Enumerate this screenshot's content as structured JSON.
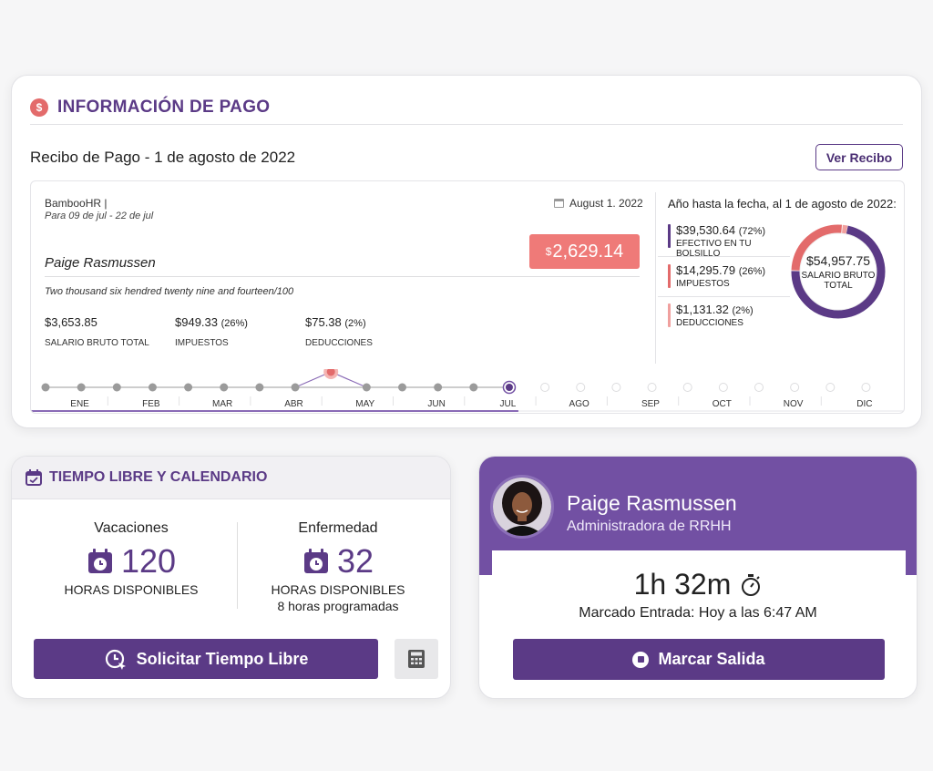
{
  "pay": {
    "title": "INFORMACIÓN DE PAGO",
    "stub_title": "Recibo de Pago - 1 de agosto de 2022",
    "view_button": "Ver Recibo",
    "company": "BambooHR |",
    "period": "Para 09 de jul - 22 de jul",
    "date": "August 1. 2022",
    "employee": "Paige Rasmussen",
    "net_currency": "$",
    "net_amount": "2,629.14",
    "amount_words": "Two thousand six hendred twenty nine and fourteen/100",
    "stats": [
      {
        "value": "$3,653.85",
        "pct": "",
        "label": "SALARIO BRUTO TOTAL"
      },
      {
        "value": "$949.33",
        "pct": "(26%)",
        "label": "IMPUESTOS"
      },
      {
        "value": "$75.38",
        "pct": "(2%)",
        "label": "DEDUCCIONES"
      }
    ],
    "ytd": {
      "title": "Año hasta la fecha, al 1 de agosto de 2022:",
      "items": [
        {
          "value": "$39,530.64",
          "pct": "(72%)",
          "label": "EFECTIVO EN TU BOLSILLO",
          "color": "#5b3a86"
        },
        {
          "value": "$14,295.79",
          "pct": "(26%)",
          "label": "IMPUESTOS",
          "color": "#e36b6b"
        },
        {
          "value": "$1,131.32",
          "pct": "(2%)",
          "label": "DEDUCCIONES",
          "color": "#f0a09e"
        }
      ],
      "total_value": "$54,957.75",
      "total_label": "SALARIO BRUTO TOTAL",
      "donut_shares": [
        72,
        26,
        2
      ]
    },
    "months": [
      "ENE",
      "FEB",
      "MAR",
      "ABR",
      "MAY",
      "JUN",
      "JUL",
      "AGO",
      "SEP",
      "OCT",
      "NOV",
      "DIC"
    ],
    "selected_month": "MAY",
    "current_month": "JUL"
  },
  "timeoff": {
    "title": "TIEMPO LIBRE Y CALENDARIO",
    "vacation": {
      "type": "Vacaciones",
      "hours": "120",
      "label": "HORAS DISPONIBLES"
    },
    "sick": {
      "type": "Enfermedad",
      "hours": "32",
      "label": "HORAS DISPONIBLES",
      "scheduled": "8 horas programadas"
    },
    "request_button": "Solicitar Tiempo Libre"
  },
  "clock": {
    "name": "Paige Rasmussen",
    "role": "Administradora de RRHH",
    "elapsed": "1h 32m",
    "clocked_in": "Marcado Entrada: Hoy a las 6:47 AM",
    "clock_out_button": "Marcar Salida"
  },
  "colors": {
    "brand": "#5b3a86",
    "accent": "#e36b6b",
    "light_accent": "#f0a09e"
  }
}
